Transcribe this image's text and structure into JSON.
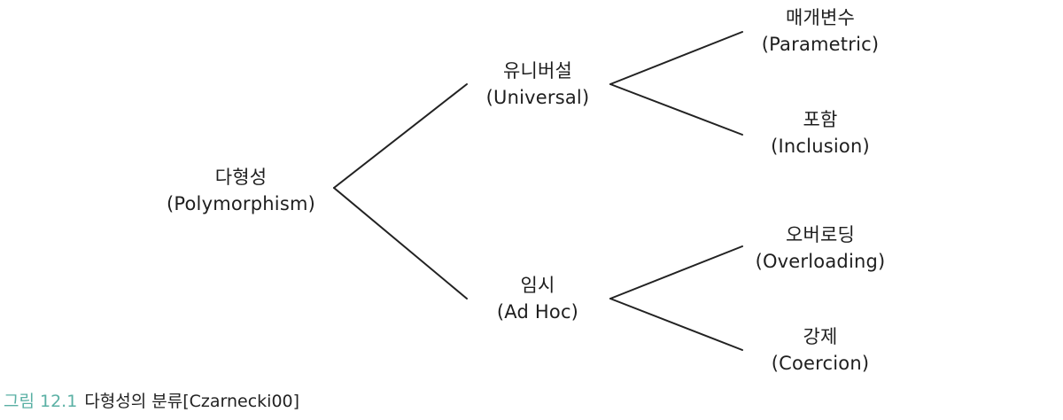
{
  "diagram": {
    "root": {
      "korean": "다형성",
      "english": "(Polymorphism)"
    },
    "universal": {
      "korean": "유니버설",
      "english": "(Universal)"
    },
    "adhoc": {
      "korean": "임시",
      "english": "(Ad Hoc)"
    },
    "parametric": {
      "korean": "매개변수",
      "english": "(Parametric)"
    },
    "inclusion": {
      "korean": "포함",
      "english": "(Inclusion)"
    },
    "overloading": {
      "korean": "오버로딩",
      "english": "(Overloading)"
    },
    "coercion": {
      "korean": "강제",
      "english": "(Coercion)"
    }
  },
  "caption": {
    "label": "그림 12.1",
    "text": "다형성의 분류[Czarnecki00]"
  },
  "colors": {
    "caption_label": "#5ab0a4",
    "lines": "#222222",
    "text": "#1e1e1e"
  }
}
